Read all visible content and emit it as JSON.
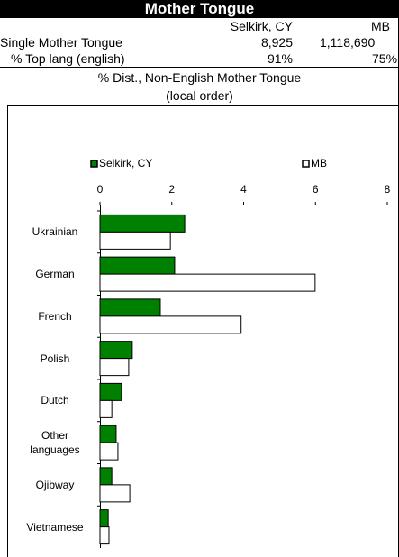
{
  "header": {
    "title": "Mother Tongue"
  },
  "table": {
    "columns": [
      "Selkirk, CY",
      "MB"
    ],
    "rows": [
      [
        "Single Mother Tongue",
        "8,925",
        "1,118,690"
      ],
      [
        "% Top lang (english)",
        "91%",
        "75%"
      ]
    ]
  },
  "chart_data": {
    "type": "hbar",
    "title": "% Dist., Non-English Mother Tongue",
    "subtitle": "(local order)",
    "categories": [
      "Ukrainian",
      "German",
      "French",
      "Polish",
      "Dutch",
      "Other languages",
      "Ojibway",
      "Vietnamese"
    ],
    "series": [
      {
        "name": "Selkirk, CY",
        "color": "#008000",
        "values": [
          2.36,
          2.08,
          1.68,
          0.9,
          0.6,
          0.45,
          0.33,
          0.23
        ]
      },
      {
        "name": "MB",
        "color": "#ffffff",
        "values": [
          1.96,
          5.99,
          3.93,
          0.8,
          0.33,
          0.5,
          0.83,
          0.25
        ]
      }
    ],
    "xlim": [
      0,
      8
    ],
    "xticks": [
      0,
      2,
      4,
      6,
      8
    ],
    "legend": "top"
  }
}
